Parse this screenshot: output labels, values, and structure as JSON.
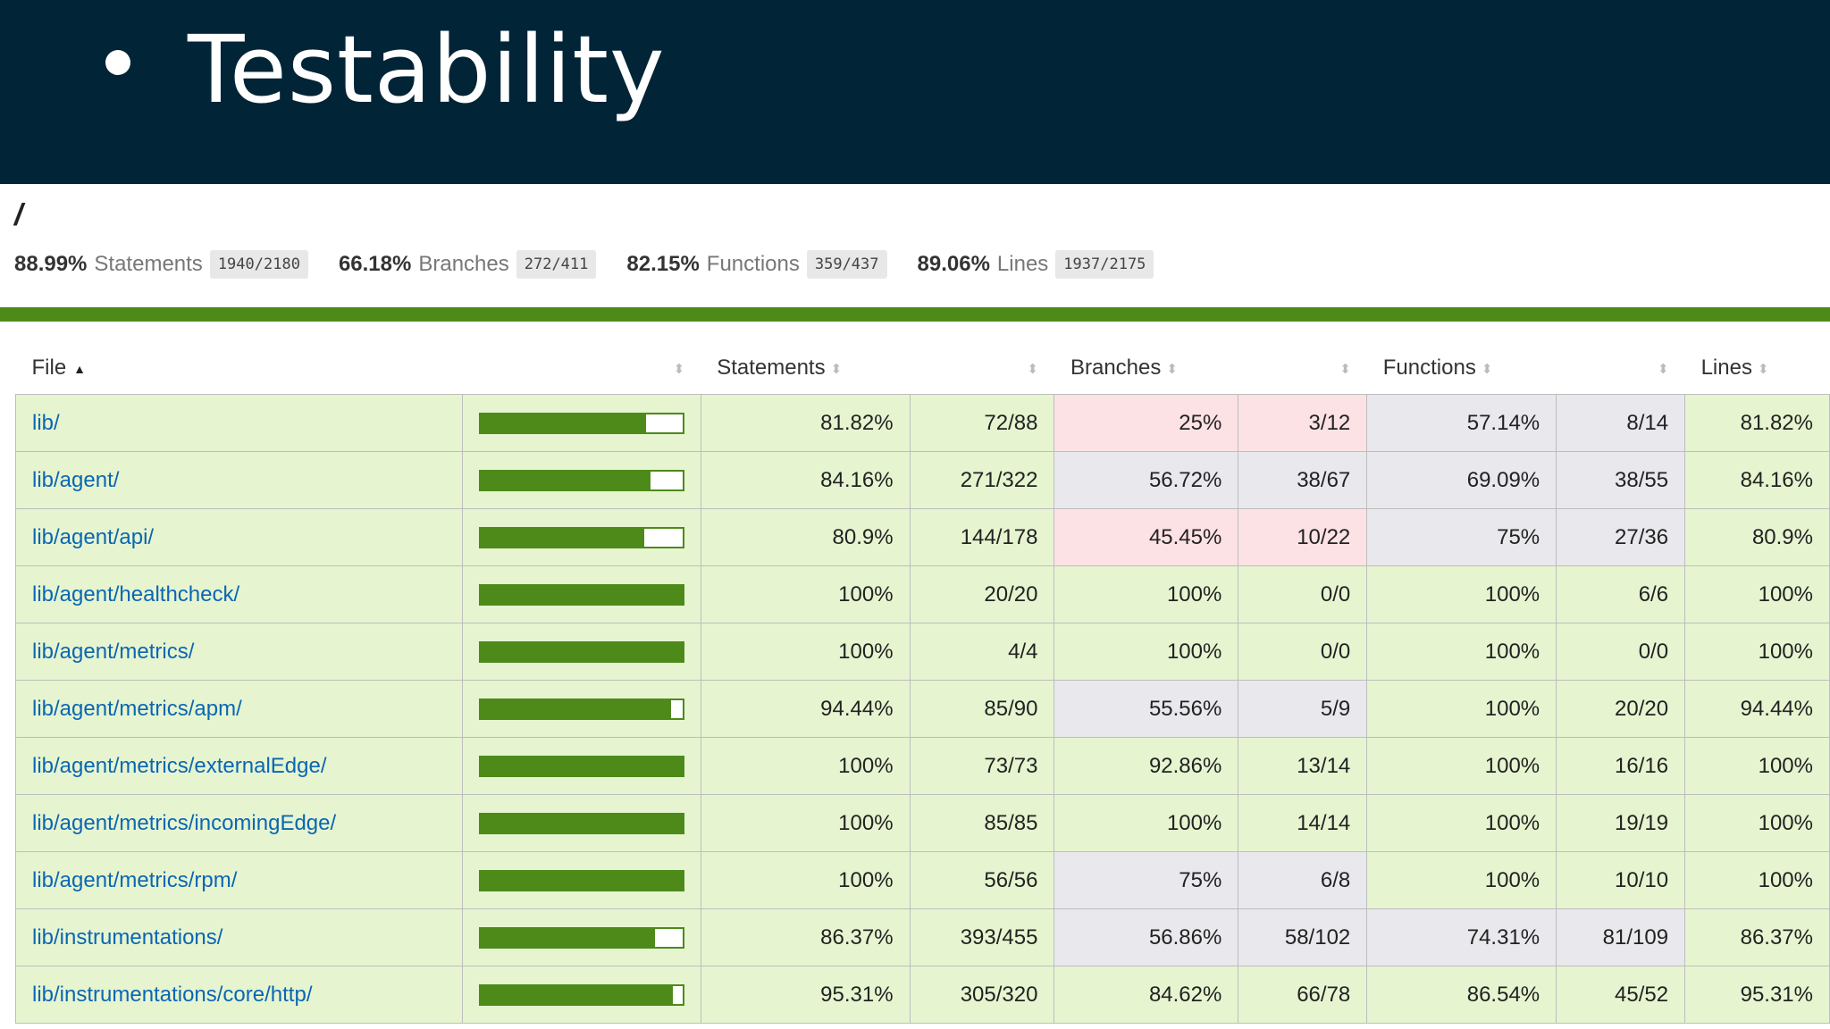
{
  "slide": {
    "bullet": "•",
    "title": "Testability"
  },
  "report": {
    "path": "/",
    "summary": [
      {
        "pct": "88.99%",
        "name": "Statements",
        "frac": "1940/2180"
      },
      {
        "pct": "66.18%",
        "name": "Branches",
        "frac": "272/411"
      },
      {
        "pct": "82.15%",
        "name": "Functions",
        "frac": "359/437"
      },
      {
        "pct": "89.06%",
        "name": "Lines",
        "frac": "1937/2175"
      }
    ],
    "status_color": "#4d8a1a",
    "colors": {
      "high": "#e6f5d0",
      "medium": "#e8e8ed",
      "low": "#fce1e5",
      "bar": "#4d8a1a",
      "link": "#0b66b3"
    }
  },
  "table": {
    "headers": {
      "file": "File",
      "statements": "Statements",
      "branches": "Branches",
      "functions": "Functions",
      "lines": "Lines"
    },
    "sort_icon": "sort-arrows-icon",
    "sort_active_icon": "sort-ascending-icon",
    "rows": [
      {
        "file": "lib/",
        "bar_pct": 81.82,
        "stmt_pct": "81.82%",
        "stmt_frac": "72/88",
        "br_pct": "25%",
        "br_frac": "3/12",
        "fn_pct": "57.14%",
        "fn_frac": "8/14",
        "ln_pct": "81.82%",
        "stmt_level": "high",
        "br_level": "low",
        "fn_level": "medium",
        "ln_level": "high"
      },
      {
        "file": "lib/agent/",
        "bar_pct": 84.16,
        "stmt_pct": "84.16%",
        "stmt_frac": "271/322",
        "br_pct": "56.72%",
        "br_frac": "38/67",
        "fn_pct": "69.09%",
        "fn_frac": "38/55",
        "ln_pct": "84.16%",
        "stmt_level": "high",
        "br_level": "medium",
        "fn_level": "medium",
        "ln_level": "high"
      },
      {
        "file": "lib/agent/api/",
        "bar_pct": 80.9,
        "stmt_pct": "80.9%",
        "stmt_frac": "144/178",
        "br_pct": "45.45%",
        "br_frac": "10/22",
        "fn_pct": "75%",
        "fn_frac": "27/36",
        "ln_pct": "80.9%",
        "stmt_level": "high",
        "br_level": "low",
        "fn_level": "medium",
        "ln_level": "high"
      },
      {
        "file": "lib/agent/healthcheck/",
        "bar_pct": 100,
        "stmt_pct": "100%",
        "stmt_frac": "20/20",
        "br_pct": "100%",
        "br_frac": "0/0",
        "fn_pct": "100%",
        "fn_frac": "6/6",
        "ln_pct": "100%",
        "stmt_level": "high",
        "br_level": "high",
        "fn_level": "high",
        "ln_level": "high"
      },
      {
        "file": "lib/agent/metrics/",
        "bar_pct": 100,
        "stmt_pct": "100%",
        "stmt_frac": "4/4",
        "br_pct": "100%",
        "br_frac": "0/0",
        "fn_pct": "100%",
        "fn_frac": "0/0",
        "ln_pct": "100%",
        "stmt_level": "high",
        "br_level": "high",
        "fn_level": "high",
        "ln_level": "high"
      },
      {
        "file": "lib/agent/metrics/apm/",
        "bar_pct": 94.44,
        "stmt_pct": "94.44%",
        "stmt_frac": "85/90",
        "br_pct": "55.56%",
        "br_frac": "5/9",
        "fn_pct": "100%",
        "fn_frac": "20/20",
        "ln_pct": "94.44%",
        "stmt_level": "high",
        "br_level": "medium",
        "fn_level": "high",
        "ln_level": "high"
      },
      {
        "file": "lib/agent/metrics/externalEdge/",
        "bar_pct": 100,
        "stmt_pct": "100%",
        "stmt_frac": "73/73",
        "br_pct": "92.86%",
        "br_frac": "13/14",
        "fn_pct": "100%",
        "fn_frac": "16/16",
        "ln_pct": "100%",
        "stmt_level": "high",
        "br_level": "high",
        "fn_level": "high",
        "ln_level": "high"
      },
      {
        "file": "lib/agent/metrics/incomingEdge/",
        "bar_pct": 100,
        "stmt_pct": "100%",
        "stmt_frac": "85/85",
        "br_pct": "100%",
        "br_frac": "14/14",
        "fn_pct": "100%",
        "fn_frac": "19/19",
        "ln_pct": "100%",
        "stmt_level": "high",
        "br_level": "high",
        "fn_level": "high",
        "ln_level": "high"
      },
      {
        "file": "lib/agent/metrics/rpm/",
        "bar_pct": 100,
        "stmt_pct": "100%",
        "stmt_frac": "56/56",
        "br_pct": "75%",
        "br_frac": "6/8",
        "fn_pct": "100%",
        "fn_frac": "10/10",
        "ln_pct": "100%",
        "stmt_level": "high",
        "br_level": "medium",
        "fn_level": "high",
        "ln_level": "high"
      },
      {
        "file": "lib/instrumentations/",
        "bar_pct": 86.37,
        "stmt_pct": "86.37%",
        "stmt_frac": "393/455",
        "br_pct": "56.86%",
        "br_frac": "58/102",
        "fn_pct": "74.31%",
        "fn_frac": "81/109",
        "ln_pct": "86.37%",
        "stmt_level": "high",
        "br_level": "medium",
        "fn_level": "medium",
        "ln_level": "high"
      },
      {
        "file": "lib/instrumentations/core/http/",
        "bar_pct": 95.31,
        "stmt_pct": "95.31%",
        "stmt_frac": "305/320",
        "br_pct": "84.62%",
        "br_frac": "66/78",
        "fn_pct": "86.54%",
        "fn_frac": "45/52",
        "ln_pct": "95.31%",
        "stmt_level": "high",
        "br_level": "high",
        "fn_level": "high",
        "ln_level": "high"
      }
    ]
  }
}
